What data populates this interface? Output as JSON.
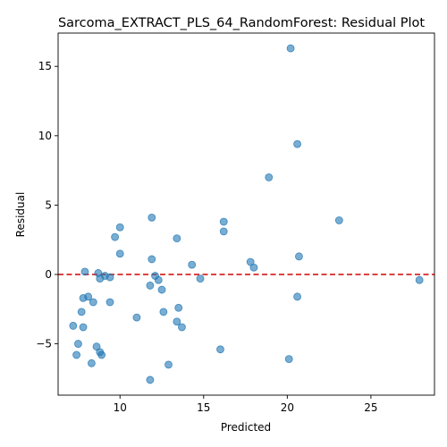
{
  "chart_data": {
    "type": "scatter",
    "title": "Sarcoma_EXTRACT_PLS_64_RandomForest: Residual Plot",
    "xlabel": "Predicted",
    "ylabel": "Residual",
    "xlim": [
      6.3,
      28.8
    ],
    "ylim": [
      -8.7,
      17.4
    ],
    "xticks": [
      10,
      15,
      20,
      25
    ],
    "xtick_labels": [
      "10",
      "15",
      "20",
      "25"
    ],
    "yticks": [
      -5,
      0,
      5,
      10,
      15
    ],
    "ytick_labels": [
      "−5",
      "0",
      "5",
      "10",
      "15"
    ],
    "grid": false,
    "legend": "none",
    "reference_line": {
      "y": 0,
      "color": "#d62728",
      "style": "dashed"
    },
    "marker_color": "#1f77b4",
    "marker_alpha": 0.6,
    "points": [
      {
        "x": 20.2,
        "y": 16.3
      },
      {
        "x": 20.6,
        "y": 9.4
      },
      {
        "x": 18.9,
        "y": 7.0
      },
      {
        "x": 11.9,
        "y": 4.1
      },
      {
        "x": 16.2,
        "y": 3.8
      },
      {
        "x": 23.1,
        "y": 3.9
      },
      {
        "x": 10.0,
        "y": 3.4
      },
      {
        "x": 16.2,
        "y": 3.1
      },
      {
        "x": 9.7,
        "y": 2.7
      },
      {
        "x": 13.4,
        "y": 2.6
      },
      {
        "x": 10.0,
        "y": 1.5
      },
      {
        "x": 20.7,
        "y": 1.3
      },
      {
        "x": 11.9,
        "y": 1.1
      },
      {
        "x": 17.8,
        "y": 0.9
      },
      {
        "x": 14.3,
        "y": 0.7
      },
      {
        "x": 18.0,
        "y": 0.5
      },
      {
        "x": 7.9,
        "y": 0.2
      },
      {
        "x": 8.7,
        "y": 0.1
      },
      {
        "x": 12.1,
        "y": -0.1
      },
      {
        "x": 9.1,
        "y": -0.1
      },
      {
        "x": 8.8,
        "y": -0.3
      },
      {
        "x": 9.4,
        "y": -0.2
      },
      {
        "x": 12.3,
        "y": -0.4
      },
      {
        "x": 14.8,
        "y": -0.3
      },
      {
        "x": 27.9,
        "y": -0.4
      },
      {
        "x": 11.8,
        "y": -0.8
      },
      {
        "x": 12.5,
        "y": -1.1
      },
      {
        "x": 8.1,
        "y": -1.6
      },
      {
        "x": 7.8,
        "y": -1.7
      },
      {
        "x": 20.6,
        "y": -1.6
      },
      {
        "x": 8.4,
        "y": -2.0
      },
      {
        "x": 9.4,
        "y": -2.0
      },
      {
        "x": 13.5,
        "y": -2.4
      },
      {
        "x": 7.7,
        "y": -2.7
      },
      {
        "x": 12.6,
        "y": -2.7
      },
      {
        "x": 11.0,
        "y": -3.1
      },
      {
        "x": 13.4,
        "y": -3.4
      },
      {
        "x": 7.2,
        "y": -3.7
      },
      {
        "x": 7.8,
        "y": -3.8
      },
      {
        "x": 13.7,
        "y": -3.8
      },
      {
        "x": 7.5,
        "y": -5.0
      },
      {
        "x": 8.6,
        "y": -5.2
      },
      {
        "x": 16.0,
        "y": -5.4
      },
      {
        "x": 8.8,
        "y": -5.6
      },
      {
        "x": 7.4,
        "y": -5.8
      },
      {
        "x": 8.9,
        "y": -5.8
      },
      {
        "x": 20.1,
        "y": -6.1
      },
      {
        "x": 8.3,
        "y": -6.4
      },
      {
        "x": 12.9,
        "y": -6.5
      },
      {
        "x": 11.8,
        "y": -7.6
      }
    ]
  }
}
